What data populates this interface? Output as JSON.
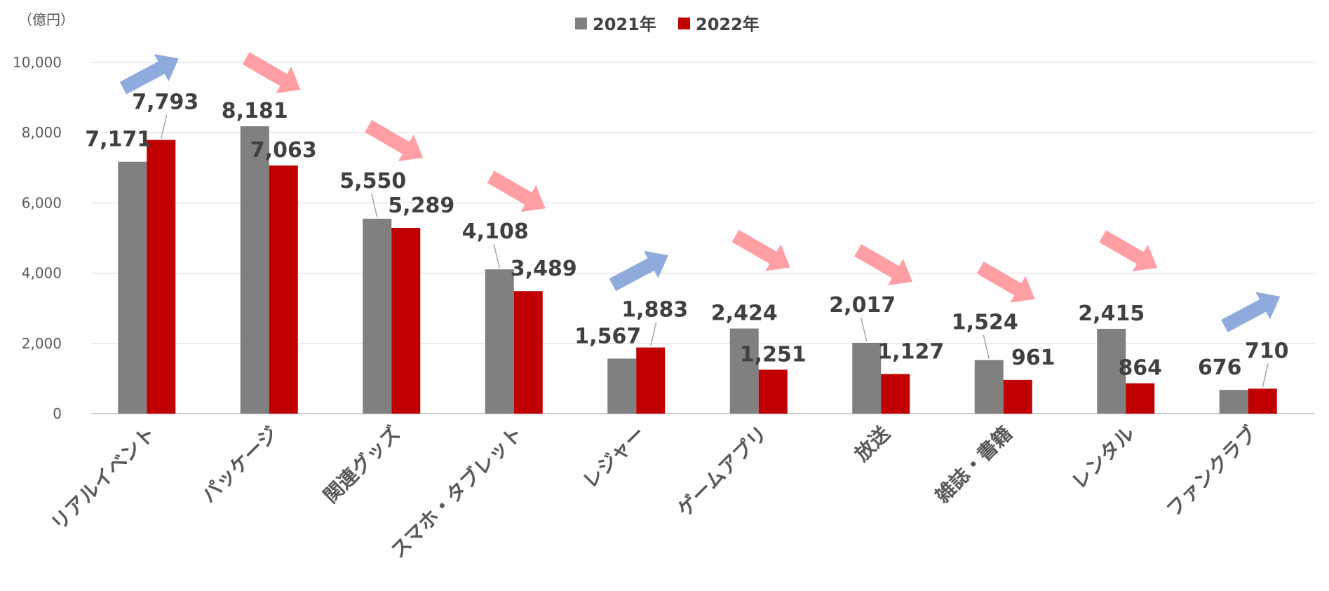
{
  "chart_data": {
    "type": "bar",
    "unit_label": "（億円）",
    "categories": [
      "リアルイベント",
      "パッケージ",
      "関連グッズ",
      "スマホ・タブレット",
      "レジャー",
      "ゲームアプリ",
      "放送",
      "雑誌・書籍",
      "レンタル",
      "ファンクラブ"
    ],
    "series": [
      {
        "name": "2021年",
        "color": "#808080",
        "values": [
          7171,
          8181,
          5550,
          4108,
          1567,
          2424,
          2017,
          1524,
          2415,
          676
        ]
      },
      {
        "name": "2022年",
        "color": "#C00000",
        "values": [
          7793,
          7063,
          5289,
          3489,
          1883,
          1251,
          1127,
          961,
          864,
          710
        ]
      }
    ],
    "data_labels": [
      [
        "7,171",
        "8,181",
        "5,550",
        "4,108",
        "1,567",
        "2,424",
        "2,017",
        "1,524",
        "2,415",
        "676"
      ],
      [
        "7,793",
        "7,063",
        "5,289",
        "3,489",
        "1,883",
        "1,251",
        "1,127",
        "961",
        "864",
        "710"
      ]
    ],
    "yticks": [
      0,
      2000,
      4000,
      6000,
      8000,
      10000
    ],
    "ytick_labels": [
      "0",
      "2,000",
      "4,000",
      "6,000",
      "8,000",
      "10,000"
    ],
    "ylim": [
      0,
      10000
    ],
    "grid": true,
    "legend_position": "top-center",
    "trend_arrows": [
      "up",
      "down",
      "down",
      "down",
      "up",
      "down",
      "down",
      "down",
      "down",
      "up"
    ],
    "arrow_colors": {
      "up": "#8FAADC",
      "down": "#FF9FA4"
    }
  }
}
